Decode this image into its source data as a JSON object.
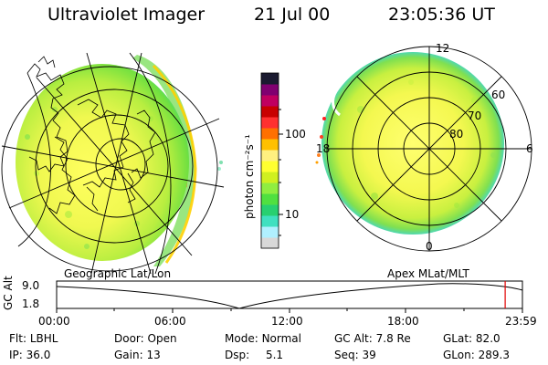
{
  "header": {
    "title": "Ultraviolet Imager",
    "date": "21 Jul 00",
    "time": "23:05:36 UT"
  },
  "colorbar": {
    "label": "photon cm⁻²s⁻¹",
    "ticks": [
      "100",
      "10"
    ],
    "colors": [
      "#d8d8d8",
      "#b0f0ff",
      "#40e0c0",
      "#28d070",
      "#50e040",
      "#90ee40",
      "#d0f020",
      "#ffff30",
      "#fff080",
      "#ffc000",
      "#ff7000",
      "#ff3030",
      "#c80000",
      "#c00060",
      "#800070",
      "#1a1a30"
    ]
  },
  "left_panel": {
    "caption": "Geographic Lat/Lon"
  },
  "right_panel": {
    "caption": "Apex MLat/MLT",
    "mlt_labels": {
      "top": "12",
      "left": "18",
      "right": "6",
      "bottom": "0"
    },
    "lat_labels": [
      "60",
      "70",
      "80"
    ]
  },
  "altitude_plot": {
    "axis_label": "GC Alt",
    "y_ticks": [
      "9.0",
      "1.8"
    ],
    "x_ticks": [
      "00:00",
      "06:00",
      "12:00",
      "18:00",
      "23:59"
    ],
    "current_marker_fraction": 0.963
  },
  "status": {
    "row1": [
      {
        "label": "Flt:",
        "value": "LBHL"
      },
      {
        "label": "Door:",
        "value": "Open"
      },
      {
        "label": "Mode:",
        "value": "Normal"
      },
      {
        "label": "GC Alt:",
        "value": "7.8 Re"
      },
      {
        "label": "GLat:",
        "value": "82.0"
      }
    ],
    "row2": [
      {
        "label": "IP:",
        "value": "36.0"
      },
      {
        "label": "Gain:",
        "value": "13"
      },
      {
        "label": "Dsp:",
        "value": "5.1"
      },
      {
        "label": "Seq:",
        "value": "39"
      },
      {
        "label": "GLon:",
        "value": "289.3"
      }
    ]
  }
}
